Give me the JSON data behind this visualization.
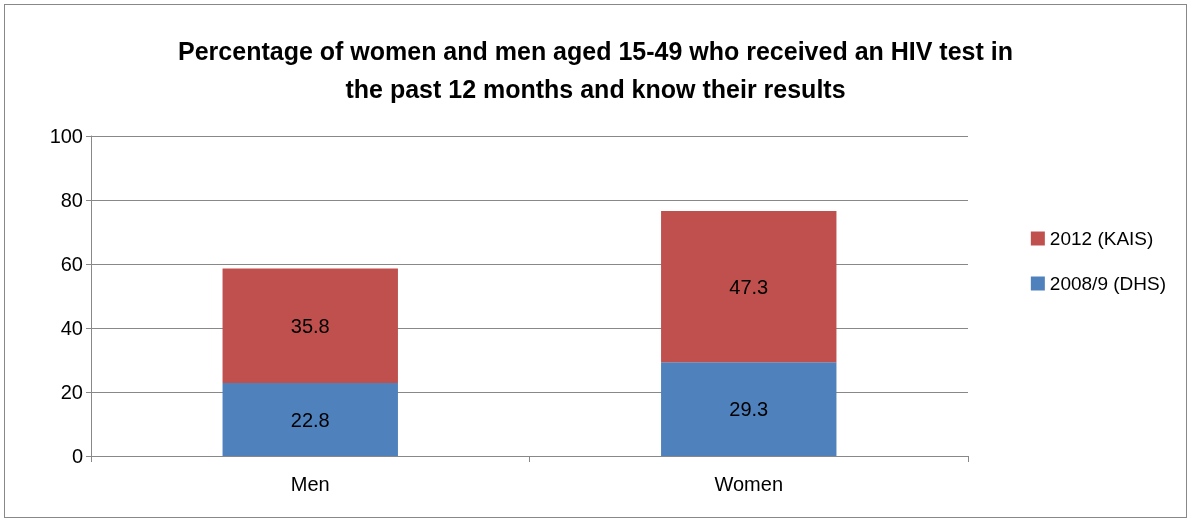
{
  "chart_data": {
    "type": "bar",
    "title": "Percentage of women and men aged 15-49 who received an HIV test in\nthe past 12 months and know their results",
    "categories": [
      "Men",
      "Women"
    ],
    "series": [
      {
        "name": "2008/9 (DHS)",
        "color": "#4f81bd",
        "values": [
          22.8,
          29.3
        ]
      },
      {
        "name": "2012 (KAIS)",
        "color": "#c0504d",
        "values": [
          35.8,
          47.3
        ]
      }
    ],
    "stacked": true,
    "ylim": [
      0,
      100
    ],
    "yticks": [
      0,
      20,
      40,
      60,
      80,
      100
    ],
    "grid": "y",
    "legend": "right",
    "data_labels": true
  }
}
